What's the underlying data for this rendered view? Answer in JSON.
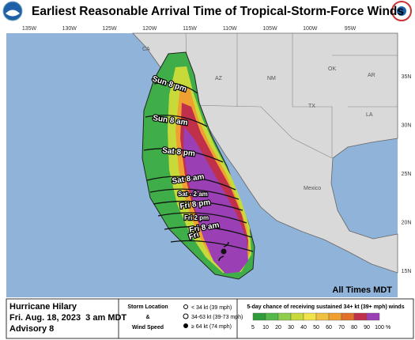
{
  "header": {
    "title": "Earliest Reasonable Arrival Time of Tropical-Storm-Force Winds"
  },
  "map": {
    "lon_labels": [
      "135W",
      "130W",
      "125W",
      "120W",
      "115W",
      "110W",
      "105W",
      "100W",
      "95W"
    ],
    "lat_labels": [
      "35N",
      "30N",
      "25N",
      "20N",
      "15N"
    ],
    "region_labels": [
      "CA",
      "AZ",
      "NM",
      "OK",
      "AR",
      "TX",
      "LA",
      "Mexico"
    ],
    "time_labels": [
      "Sun 8 pm",
      "Sun 8 am",
      "Sat 8 pm",
      "Sat 8 am",
      "Sat - 2 am",
      "Fri 8 pm",
      "Fri 2 pm",
      "Fri 8 am",
      "Fri"
    ],
    "note": "All Times MDT"
  },
  "footer": {
    "storm": {
      "name": "Hurricane Hilary",
      "date": "Fri. Aug. 18, 2023  3 am MDT",
      "advisory": "Advisory 8"
    },
    "legend": {
      "line1": "Storm Location",
      "line2": "&",
      "line3": "Wind Speed",
      "items": [
        "< 34 kt (39 mph)",
        "34-63 kt (39-73 mph)",
        "≥ 64 kt (74 mph)"
      ]
    },
    "scale": {
      "title": "5-day chance of receiving sustained 34+ kt (39+ mph) winds",
      "ticks": [
        5,
        10,
        20,
        30,
        40,
        50,
        60,
        70,
        80,
        90,
        100
      ],
      "unit": "%"
    }
  }
}
